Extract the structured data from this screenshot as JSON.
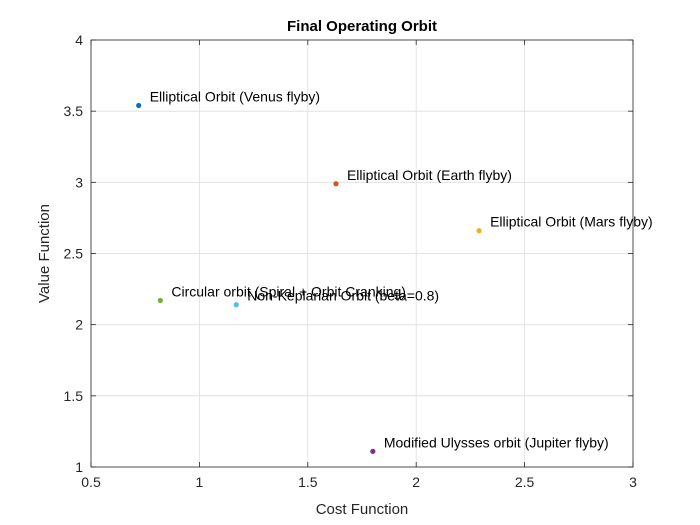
{
  "chart_data": {
    "type": "scatter",
    "title": "Final Operating Orbit",
    "xlabel": "Cost Function",
    "ylabel": "Value Function",
    "xlim": [
      0.5,
      3
    ],
    "ylim": [
      1,
      4
    ],
    "xticks": [
      0.5,
      1,
      1.5,
      2,
      2.5,
      3
    ],
    "xtick_labels": [
      "0.5",
      "1",
      "1.5",
      "2",
      "2.5",
      "3"
    ],
    "yticks": [
      1,
      1.5,
      2,
      2.5,
      3,
      3.5,
      4
    ],
    "ytick_labels": [
      "1",
      "1.5",
      "2",
      "2.5",
      "3",
      "3.5",
      "4"
    ],
    "grid": true,
    "points": [
      {
        "label": "Elliptical Orbit (Venus flyby)",
        "x": 0.72,
        "y": 3.54,
        "color": "#0072BD"
      },
      {
        "label": "Elliptical Orbit (Earth flyby)",
        "x": 1.63,
        "y": 2.99,
        "color": "#D95319"
      },
      {
        "label": "Elliptical Orbit (Mars flyby)",
        "x": 2.29,
        "y": 2.66,
        "color": "#EDB120"
      },
      {
        "label": "Modified Ulysses orbit (Jupiter flyby)",
        "x": 1.8,
        "y": 1.11,
        "color": "#7E2F8E"
      },
      {
        "label": "Circular orbit (Spiral + Orbit Cranking)",
        "x": 0.82,
        "y": 2.17,
        "color": "#77AC30"
      },
      {
        "label": "Non-Keplarian Orbit (beta=0.8)",
        "x": 1.17,
        "y": 2.14,
        "color": "#4DBEEE"
      }
    ]
  }
}
